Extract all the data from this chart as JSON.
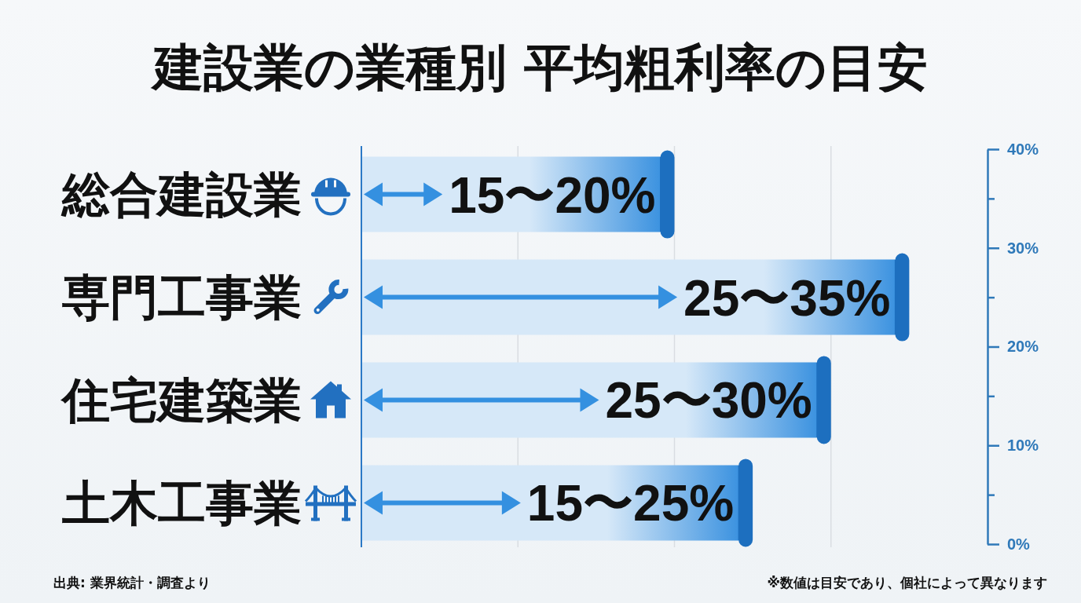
{
  "chart_data": {
    "type": "bar",
    "orientation": "horizontal",
    "title": "建設業の業種別 平均粗利率の目安",
    "categories": [
      "総合建設業",
      "専門工事業",
      "住宅建築業",
      "土木工事業"
    ],
    "values": [
      20,
      35,
      30,
      25
    ],
    "color": "#d6e8f8",
    "value_labels": [
      "15〜20%",
      "25〜35%",
      "25〜30%",
      "15〜25%"
    ],
    "xlim": [
      0,
      40
    ],
    "xticks": [
      {
        "value": 0,
        "label": null
      },
      {
        "value": 10,
        "label": null
      },
      {
        "value": 20,
        "label": null
      },
      {
        "value": 30,
        "label": null
      },
      {
        "value": 40,
        "label": null
      }
    ],
    "grid": "x",
    "y2lim": [
      0,
      40
    ],
    "y2ticks": [
      {
        "value": 0,
        "label": "0%"
      },
      {
        "value": 5,
        "label": null
      },
      {
        "value": 10,
        "label": "10%"
      },
      {
        "value": 15,
        "label": null
      },
      {
        "value": 20,
        "label": "20%"
      },
      {
        "value": 25,
        "label": null
      },
      {
        "value": 30,
        "label": "30%"
      },
      {
        "value": 35,
        "label": null
      },
      {
        "value": 40,
        "label": "40%"
      }
    ],
    "annotations": [
      "出典: 業界統計・調査より",
      "※数値は目安であり、個社によって異なります"
    ]
  }
}
